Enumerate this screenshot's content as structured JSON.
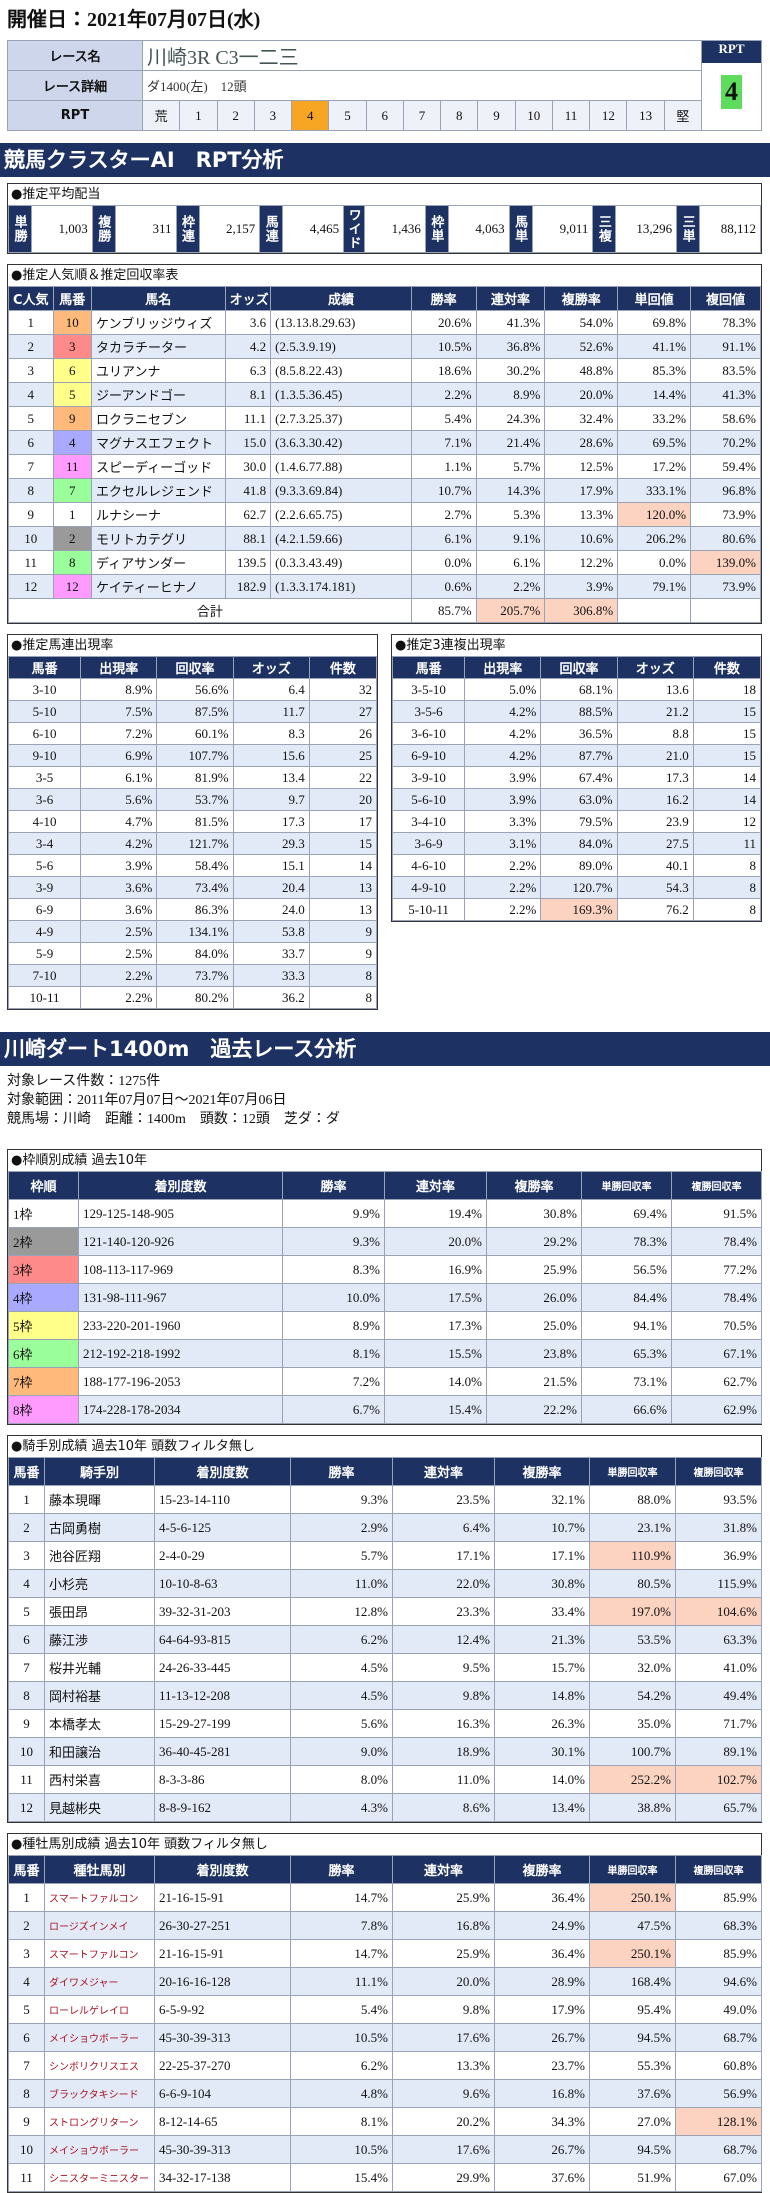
{
  "header": {
    "date": "開催日：2021年07月07日(水)"
  },
  "race": {
    "name_label": "レース名",
    "name": "川崎3R C3一二三",
    "detail_label": "レース詳細",
    "detail": "ダ1400(左)　12頭",
    "rpt_label": "RPT",
    "rpt_scale": [
      "荒",
      "1",
      "2",
      "3",
      "4",
      "5",
      "6",
      "7",
      "8",
      "9",
      "10",
      "11",
      "12",
      "13",
      "堅"
    ],
    "rpt_header": "RPT",
    "rpt_value": "4"
  },
  "rpt_section": {
    "title": "競馬クラスターAI　RPT分析"
  },
  "payout": {
    "title": "●推定平均配当",
    "items": [
      [
        "単勝",
        "1,003"
      ],
      [
        "複勝",
        "311"
      ],
      [
        "枠連",
        "2,157"
      ],
      [
        "馬連",
        "4,465"
      ],
      [
        "ワイド",
        "1,436"
      ],
      [
        "枠単",
        "4,063"
      ],
      [
        "馬単",
        "9,011"
      ],
      [
        "三複",
        "13,296"
      ],
      [
        "三単",
        "88,112"
      ]
    ]
  },
  "popularity": {
    "title": "●推定人気順＆推定回収率表",
    "headers": [
      "C人気",
      "馬番",
      "馬名",
      "オッズ",
      "成績",
      "勝率",
      "連対率",
      "複勝率",
      "単回値",
      "複回値"
    ],
    "rows": [
      [
        "1",
        "10",
        "ケンブリッジウィズ",
        "3.6",
        "(13.13.8.29.63)",
        "20.6%",
        "41.3%",
        "54.0%",
        "69.8%",
        "78.3%"
      ],
      [
        "2",
        "3",
        "タカラチーター",
        "4.2",
        "(2.5.3.9.19)",
        "10.5%",
        "36.8%",
        "52.6%",
        "41.1%",
        "91.1%"
      ],
      [
        "3",
        "6",
        "ユリアンナ",
        "6.3",
        "(8.5.8.22.43)",
        "18.6%",
        "30.2%",
        "48.8%",
        "85.3%",
        "83.5%"
      ],
      [
        "4",
        "5",
        "ジーアンドゴー",
        "8.1",
        "(1.3.5.36.45)",
        "2.2%",
        "8.9%",
        "20.0%",
        "14.4%",
        "41.3%"
      ],
      [
        "5",
        "9",
        "ロクラニセブン",
        "11.1",
        "(2.7.3.25.37)",
        "5.4%",
        "24.3%",
        "32.4%",
        "33.2%",
        "58.6%"
      ],
      [
        "6",
        "4",
        "マグナスエフェクト",
        "15.0",
        "(3.6.3.30.42)",
        "7.1%",
        "21.4%",
        "28.6%",
        "69.5%",
        "70.2%"
      ],
      [
        "7",
        "11",
        "スピーディーゴッド",
        "30.0",
        "(1.4.6.77.88)",
        "1.1%",
        "5.7%",
        "12.5%",
        "17.2%",
        "59.4%"
      ],
      [
        "8",
        "7",
        "エクセルレジェンド",
        "41.8",
        "(9.3.3.69.84)",
        "10.7%",
        "14.3%",
        "17.9%",
        "333.1%",
        "96.8%"
      ],
      [
        "9",
        "1",
        "ルナシーナ",
        "62.7",
        "(2.2.6.65.75)",
        "2.7%",
        "5.3%",
        "13.3%",
        "120.0%",
        "73.9%"
      ],
      [
        "10",
        "2",
        "モリトカテグリ",
        "88.1",
        "(4.2.1.59.66)",
        "6.1%",
        "9.1%",
        "10.6%",
        "206.2%",
        "80.6%"
      ],
      [
        "11",
        "8",
        "ディアサンダー",
        "139.5",
        "(0.3.3.43.49)",
        "0.0%",
        "6.1%",
        "12.2%",
        "0.0%",
        "139.0%"
      ],
      [
        "12",
        "12",
        "ケイティーヒナノ",
        "182.9",
        "(1.3.3.174.181)",
        "0.6%",
        "2.2%",
        "3.9%",
        "79.1%",
        "73.9%"
      ]
    ],
    "total": {
      "label": "合計",
      "values": [
        "85.7%",
        "205.7%",
        "306.8%"
      ]
    }
  },
  "quinella": {
    "title": "●推定馬連出現率",
    "headers": [
      "馬番",
      "出現率",
      "回収率",
      "オッズ",
      "件数"
    ],
    "rows": [
      [
        "3-10",
        "8.9%",
        "56.6%",
        "6.4",
        "32"
      ],
      [
        "5-10",
        "7.5%",
        "87.5%",
        "11.7",
        "27"
      ],
      [
        "6-10",
        "7.2%",
        "60.1%",
        "8.3",
        "26"
      ],
      [
        "9-10",
        "6.9%",
        "107.7%",
        "15.6",
        "25"
      ],
      [
        "3-5",
        "6.1%",
        "81.9%",
        "13.4",
        "22"
      ],
      [
        "3-6",
        "5.6%",
        "53.7%",
        "9.7",
        "20"
      ],
      [
        "4-10",
        "4.7%",
        "81.5%",
        "17.3",
        "17"
      ],
      [
        "3-4",
        "4.2%",
        "121.7%",
        "29.3",
        "15"
      ],
      [
        "5-6",
        "3.9%",
        "58.4%",
        "15.1",
        "14"
      ],
      [
        "3-9",
        "3.6%",
        "73.4%",
        "20.4",
        "13"
      ],
      [
        "6-9",
        "3.6%",
        "86.3%",
        "24.0",
        "13"
      ],
      [
        "4-9",
        "2.5%",
        "134.1%",
        "53.8",
        "9"
      ],
      [
        "5-9",
        "2.5%",
        "84.0%",
        "33.7",
        "9"
      ],
      [
        "7-10",
        "2.2%",
        "73.7%",
        "33.3",
        "8"
      ],
      [
        "10-11",
        "2.2%",
        "80.2%",
        "36.2",
        "8"
      ]
    ]
  },
  "trio": {
    "title": "●推定3連複出現率",
    "headers": [
      "馬番",
      "出現率",
      "回収率",
      "オッズ",
      "件数"
    ],
    "rows": [
      [
        "3-5-10",
        "5.0%",
        "68.1%",
        "13.6",
        "18"
      ],
      [
        "3-5-6",
        "4.2%",
        "88.5%",
        "21.2",
        "15"
      ],
      [
        "3-6-10",
        "4.2%",
        "36.5%",
        "8.8",
        "15"
      ],
      [
        "6-9-10",
        "4.2%",
        "87.7%",
        "21.0",
        "15"
      ],
      [
        "3-9-10",
        "3.9%",
        "67.4%",
        "17.3",
        "14"
      ],
      [
        "5-6-10",
        "3.9%",
        "63.0%",
        "16.2",
        "14"
      ],
      [
        "3-4-10",
        "3.3%",
        "79.5%",
        "23.9",
        "12"
      ],
      [
        "3-6-9",
        "3.1%",
        "84.0%",
        "27.5",
        "11"
      ],
      [
        "4-6-10",
        "2.2%",
        "89.0%",
        "40.1",
        "8"
      ],
      [
        "4-9-10",
        "2.2%",
        "120.7%",
        "54.3",
        "8"
      ],
      [
        "5-10-11",
        "2.2%",
        "169.3%",
        "76.2",
        "8"
      ]
    ]
  },
  "past_section": {
    "title": "川崎ダート1400m　過去レース分析",
    "lines": [
      "対象レース件数：1275件",
      "対象範囲：2011年07月07日～2021年07月06日",
      "競馬場：川崎　距離：1400m　頭数：12頭　芝ダ：ダ"
    ]
  },
  "gate_stats": {
    "title": "●枠順別成績 過去10年",
    "headers": [
      "枠順",
      "着別度数",
      "勝率",
      "連対率",
      "複勝率",
      "単勝回収率",
      "複勝回収率"
    ],
    "rows": [
      [
        "1枠",
        "129-125-148-905",
        "9.9%",
        "19.4%",
        "30.8%",
        "69.4%",
        "91.5%"
      ],
      [
        "2枠",
        "121-140-120-926",
        "9.3%",
        "20.0%",
        "29.2%",
        "78.3%",
        "78.4%"
      ],
      [
        "3枠",
        "108-113-117-969",
        "8.3%",
        "16.9%",
        "25.9%",
        "56.5%",
        "77.2%"
      ],
      [
        "4枠",
        "131-98-111-967",
        "10.0%",
        "17.5%",
        "26.0%",
        "84.4%",
        "78.4%"
      ],
      [
        "5枠",
        "233-220-201-1960",
        "8.9%",
        "17.3%",
        "25.0%",
        "94.1%",
        "70.5%"
      ],
      [
        "6枠",
        "212-192-218-1992",
        "8.1%",
        "15.5%",
        "23.8%",
        "65.3%",
        "67.1%"
      ],
      [
        "7枠",
        "188-177-196-2053",
        "7.2%",
        "14.0%",
        "21.5%",
        "73.1%",
        "62.7%"
      ],
      [
        "8枠",
        "174-228-178-2034",
        "6.7%",
        "15.4%",
        "22.2%",
        "66.6%",
        "62.9%"
      ]
    ]
  },
  "jockey_stats": {
    "title": "●騎手別成績 過去10年 頭数フィルタ無し",
    "headers": [
      "馬番",
      "騎手別",
      "着別度数",
      "勝率",
      "連対率",
      "複勝率",
      "単勝回収率",
      "複勝回収率"
    ],
    "rows": [
      [
        "1",
        "藤本現暉",
        "15-23-14-110",
        "9.3%",
        "23.5%",
        "32.1%",
        "88.0%",
        "93.5%"
      ],
      [
        "2",
        "古岡勇樹",
        "4-5-6-125",
        "2.9%",
        "6.4%",
        "10.7%",
        "23.1%",
        "31.8%"
      ],
      [
        "3",
        "池谷匠翔",
        "2-4-0-29",
        "5.7%",
        "17.1%",
        "17.1%",
        "110.9%",
        "36.9%"
      ],
      [
        "4",
        "小杉亮",
        "10-10-8-63",
        "11.0%",
        "22.0%",
        "30.8%",
        "80.5%",
        "115.9%"
      ],
      [
        "5",
        "張田昂",
        "39-32-31-203",
        "12.8%",
        "23.3%",
        "33.4%",
        "197.0%",
        "104.6%"
      ],
      [
        "6",
        "藤江渉",
        "64-64-93-815",
        "6.2%",
        "12.4%",
        "21.3%",
        "53.5%",
        "63.3%"
      ],
      [
        "7",
        "桜井光輔",
        "24-26-33-445",
        "4.5%",
        "9.5%",
        "15.7%",
        "32.0%",
        "41.0%"
      ],
      [
        "8",
        "岡村裕基",
        "11-13-12-208",
        "4.5%",
        "9.8%",
        "14.8%",
        "54.2%",
        "49.4%"
      ],
      [
        "9",
        "本橋孝太",
        "15-29-27-199",
        "5.6%",
        "16.3%",
        "26.3%",
        "35.0%",
        "71.7%"
      ],
      [
        "10",
        "和田譲治",
        "36-40-45-281",
        "9.0%",
        "18.9%",
        "30.1%",
        "100.7%",
        "89.1%"
      ],
      [
        "11",
        "西村栄喜",
        "8-3-3-86",
        "8.0%",
        "11.0%",
        "14.0%",
        "252.2%",
        "102.7%"
      ],
      [
        "12",
        "見越彬央",
        "8-8-9-162",
        "4.3%",
        "8.6%",
        "13.4%",
        "38.8%",
        "65.7%"
      ]
    ]
  },
  "sire_stats": {
    "title": "●種牡馬別成績 過去10年 頭数フィルタ無し",
    "headers": [
      "馬番",
      "種牡馬別",
      "着別度数",
      "勝率",
      "連対率",
      "複勝率",
      "単勝回収率",
      "複勝回収率"
    ],
    "rows": [
      [
        "1",
        "スマートファルコン",
        "21-16-15-91",
        "14.7%",
        "25.9%",
        "36.4%",
        "250.1%",
        "85.9%"
      ],
      [
        "2",
        "ロージズインメイ",
        "26-30-27-251",
        "7.8%",
        "16.8%",
        "24.9%",
        "47.5%",
        "68.3%"
      ],
      [
        "3",
        "スマートファルコン",
        "21-16-15-91",
        "14.7%",
        "25.9%",
        "36.4%",
        "250.1%",
        "85.9%"
      ],
      [
        "4",
        "ダイワメジャー",
        "20-16-16-128",
        "11.1%",
        "20.0%",
        "28.9%",
        "168.4%",
        "94.6%"
      ],
      [
        "5",
        "ローレルゲレイロ",
        "6-5-9-92",
        "5.4%",
        "9.8%",
        "17.9%",
        "95.4%",
        "49.0%"
      ],
      [
        "6",
        "メイショウボーラー",
        "45-30-39-313",
        "10.5%",
        "17.6%",
        "26.7%",
        "94.5%",
        "68.7%"
      ],
      [
        "7",
        "シンボリクリスエス",
        "22-25-37-270",
        "6.2%",
        "13.3%",
        "23.7%",
        "55.3%",
        "60.8%"
      ],
      [
        "8",
        "ブラックタキシード",
        "6-6-9-104",
        "4.8%",
        "9.6%",
        "16.8%",
        "37.6%",
        "56.9%"
      ],
      [
        "9",
        "ストロングリターン",
        "8-12-14-65",
        "8.1%",
        "20.2%",
        "34.3%",
        "27.0%",
        "128.1%"
      ],
      [
        "10",
        "メイショウボーラー",
        "45-30-39-313",
        "10.5%",
        "17.6%",
        "26.7%",
        "94.5%",
        "68.7%"
      ],
      [
        "11",
        "シニスターミニスター",
        "34-32-17-138",
        "15.4%",
        "29.9%",
        "37.6%",
        "51.9%",
        "67.0%"
      ]
    ]
  }
}
